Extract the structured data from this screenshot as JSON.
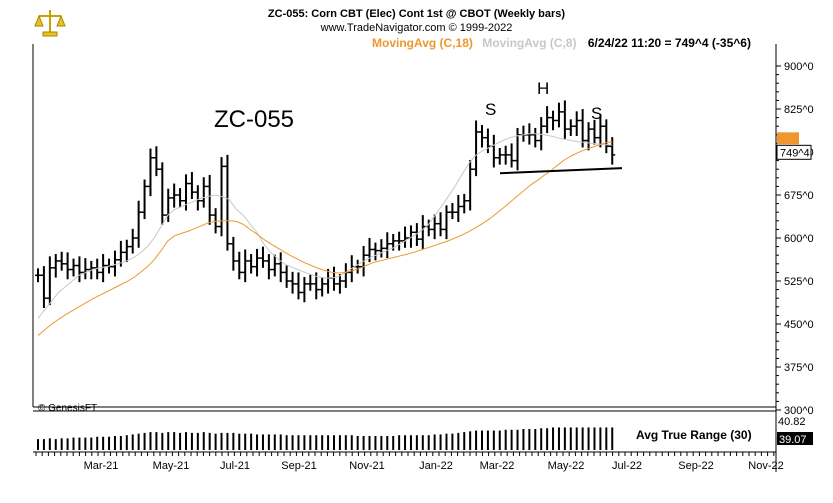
{
  "header": {
    "title": "ZC-055:  Corn CBT (Elec) Cont 1st @ CBOT  (Weekly bars)",
    "copyright": "www.TradeNavigator.com © 1999-2022",
    "ma18_label": "MovingAvg (C,18)",
    "ma8_label": "MovingAvg (C,8)",
    "last_label": "6/24/22 11:20 = 749^4 (-35^6)"
  },
  "annotations": {
    "symbol": "ZC-055",
    "left_shoulder": "S",
    "head": "H",
    "right_shoulder": "S"
  },
  "footer": {
    "source": "© GenesisFT",
    "atr_title": "Avg True Range (30)"
  },
  "colors": {
    "ma18": "#f0962e",
    "ma8": "#c8c8c8",
    "bars": "#000000",
    "current_price_box": "#f0962e"
  },
  "chart_data": {
    "type": "ohlc",
    "title": "ZC-055:  Corn CBT (Elec) Cont 1st @ CBOT  (Weekly bars)",
    "xlabel": "",
    "ylabel": "",
    "x_ticks": [
      "Mar-21",
      "May-21",
      "Jul-21",
      "Sep-21",
      "Nov-21",
      "Jan-22",
      "Mar-22",
      "May-22",
      "Jul-22",
      "Sep-22",
      "Nov-22"
    ],
    "y_ticks": [
      "900^0",
      "825^0",
      "750^0",
      "675^0",
      "600^0",
      "525^0",
      "450^0",
      "375^0",
      "300^0"
    ],
    "y_tick_values": [
      900,
      825,
      750,
      675,
      600,
      525,
      450,
      375,
      300
    ],
    "ylim": [
      285,
      950
    ],
    "price_label": "749^4",
    "closes": [
      535,
      495,
      548,
      560,
      555,
      545,
      552,
      540,
      545,
      548,
      540,
      552,
      550,
      562,
      575,
      585,
      600,
      645,
      690,
      740,
      720,
      640,
      670,
      675,
      665,
      695,
      680,
      665,
      690,
      640,
      620,
      725,
      590,
      560,
      540,
      560,
      550,
      565,
      560,
      545,
      555,
      540,
      525,
      520,
      505,
      520,
      520,
      510,
      520,
      530,
      520,
      525,
      540,
      550,
      550,
      570,
      580,
      578,
      582,
      590,
      595,
      595,
      600,
      610,
      598,
      620,
      615,
      625,
      615,
      645,
      645,
      655,
      665,
      720,
      785,
      775,
      760,
      740,
      745,
      745,
      735,
      780,
      780,
      780,
      770,
      795,
      810,
      805,
      820,
      790,
      795,
      805,
      770,
      790,
      775,
      795,
      760,
      745
    ],
    "ma18": [
      430,
      440,
      450,
      458,
      466,
      473,
      480,
      487,
      494,
      500,
      506,
      512,
      518,
      524,
      531,
      540,
      550,
      562,
      578,
      595,
      604,
      608,
      612,
      617,
      622,
      627,
      629,
      630,
      630,
      629,
      624,
      615,
      607,
      598,
      590,
      583,
      576,
      569,
      563,
      557,
      552,
      547,
      543,
      540,
      539,
      540,
      543,
      547,
      552,
      557,
      560,
      563,
      566,
      569,
      572,
      575,
      579,
      583,
      587,
      591,
      595,
      600,
      605,
      611,
      618,
      625,
      633,
      642,
      652,
      662,
      672,
      682,
      692,
      700,
      709,
      717,
      727,
      736,
      743,
      749,
      754,
      758,
      762,
      766,
      768
    ],
    "ma8": [
      460,
      475,
      490,
      505,
      515,
      525,
      535,
      540,
      545,
      548,
      550,
      553,
      556,
      560,
      566,
      574,
      585,
      600,
      620,
      640,
      650,
      655,
      660,
      665,
      670,
      673,
      675,
      672,
      667,
      650,
      640,
      625,
      610,
      590,
      575,
      565,
      555,
      550,
      545,
      540,
      536,
      532,
      530,
      530,
      533,
      540,
      548,
      555,
      562,
      568,
      573,
      578,
      583,
      590,
      597,
      604,
      612,
      622,
      638,
      655,
      672,
      690,
      710,
      730,
      744,
      752,
      758,
      764,
      770,
      775,
      778,
      780,
      782,
      782,
      780,
      778,
      775,
      772,
      770,
      768,
      767,
      765,
      764,
      763,
      762
    ],
    "neckline": [
      [
        752,
        713
      ],
      [
        821,
        722
      ]
    ],
    "atr_ticks": [
      "40.82",
      "39.07"
    ],
    "atr_values": [
      14,
      14,
      15,
      14,
      15,
      15,
      16,
      16,
      16,
      16,
      17,
      17,
      17,
      18,
      18,
      19,
      20,
      21,
      22,
      23,
      23,
      22,
      23,
      23,
      22,
      23,
      22,
      22,
      23,
      22,
      21,
      22,
      22,
      22,
      21,
      21,
      21,
      20,
      20,
      20,
      20,
      20,
      19,
      19,
      19,
      19,
      19,
      19,
      19,
      19,
      19,
      19,
      19,
      19,
      18,
      18,
      18,
      18,
      18,
      18,
      18,
      19,
      19,
      19,
      19,
      19,
      19,
      20,
      20,
      21,
      21,
      22,
      23,
      24,
      25,
      25,
      25,
      25,
      25,
      26,
      26,
      26,
      27,
      27,
      27,
      28,
      28,
      29,
      29,
      29,
      29,
      29,
      29,
      29,
      29,
      29,
      29,
      29
    ],
    "atr_ylim": [
      0,
      45
    ]
  }
}
